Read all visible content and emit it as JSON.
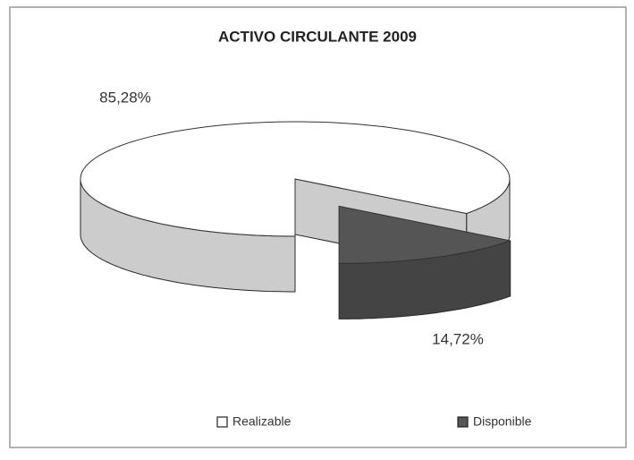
{
  "chart_data": {
    "type": "pie",
    "title": "ACTIVO CIRCULANTE 2009",
    "categories": [
      "Realizable",
      "Disponible"
    ],
    "values": [
      85.28,
      14.72
    ],
    "value_labels": [
      "85,28%",
      "14,72%"
    ],
    "colors": [
      "#ffffff",
      "#555555"
    ],
    "legend": "bottom"
  }
}
